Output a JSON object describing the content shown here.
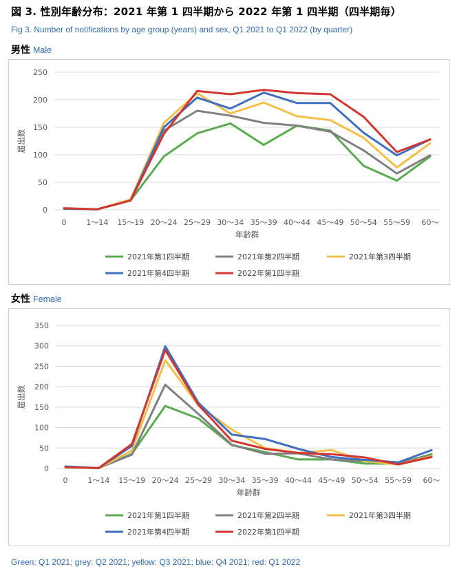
{
  "page": {
    "title": "図 3.  性別年齢分布：2021 年第 1 四半期から 2022 年第 1 四半期（四半期毎）",
    "subtitle": "Fig 3. Number of notifications by age group (years) and sex, Q1 2021 to Q1 2022 (by quarter)",
    "male_label_ja": "男性",
    "male_label_en": "Male",
    "female_label_ja": "女性",
    "female_label_en": "Female",
    "footer": "Green: Q1 2021; grey: Q2 2021; yellow: Q3 2021; blue: Q4 2021; red: Q1 2022"
  },
  "chart_data": [
    {
      "type": "line",
      "panel": "male",
      "xlabel": "年齢群",
      "ylabel": "届出数",
      "ylim": [
        0,
        250
      ],
      "yticks": [
        0,
        50,
        100,
        150,
        200,
        250
      ],
      "grid": true,
      "legend_position": "bottom",
      "categories": [
        "0",
        "1～14",
        "15～19",
        "20～24",
        "25～29",
        "30～34",
        "35～39",
        "40～44",
        "45～49",
        "50～54",
        "55～59",
        "60～"
      ],
      "series": [
        {
          "name": "2021年第1四半期",
          "color": "#5aaa50",
          "values": [
            2,
            1,
            17,
            97,
            139,
            157,
            118,
            153,
            144,
            80,
            53,
            97
          ]
        },
        {
          "name": "2021年第2四半期",
          "color": "#808080",
          "values": [
            2,
            1,
            18,
            144,
            180,
            171,
            158,
            153,
            142,
            108,
            66,
            99
          ]
        },
        {
          "name": "2021年第3四半期",
          "color": "#f2c04a",
          "values": [
            2,
            1,
            19,
            158,
            212,
            175,
            195,
            170,
            163,
            131,
            77,
            121
          ]
        },
        {
          "name": "2021年第4四半期",
          "color": "#3e6fc0",
          "values": [
            2,
            1,
            17,
            150,
            204,
            184,
            213,
            194,
            194,
            140,
            99,
            128
          ]
        },
        {
          "name": "2022年第1四半期",
          "color": "#d2372f",
          "values": [
            3,
            1,
            17,
            138,
            216,
            210,
            218,
            212,
            210,
            169,
            105,
            128
          ]
        }
      ]
    },
    {
      "type": "line",
      "panel": "female",
      "xlabel": "年齢群",
      "ylabel": "届出数",
      "ylim": [
        0,
        350
      ],
      "yticks": [
        0,
        50,
        100,
        150,
        200,
        250,
        300,
        350
      ],
      "grid": true,
      "legend_position": "bottom",
      "categories": [
        "0",
        "1～14",
        "15～19",
        "20～24",
        "25～29",
        "30～34",
        "35～39",
        "40～44",
        "45～49",
        "50～54",
        "55～59",
        "60～"
      ],
      "series": [
        {
          "name": "2021年第1四半期",
          "color": "#5aaa50",
          "values": [
            3,
            1,
            36,
            153,
            122,
            57,
            40,
            22,
            22,
            12,
            12,
            35
          ]
        },
        {
          "name": "2021年第2四半期",
          "color": "#808080",
          "values": [
            4,
            1,
            34,
            205,
            133,
            58,
            36,
            37,
            22,
            18,
            14,
            32
          ]
        },
        {
          "name": "2021年第3四半期",
          "color": "#f2c04a",
          "values": [
            3,
            1,
            44,
            265,
            154,
            95,
            50,
            38,
            45,
            18,
            10,
            30
          ]
        },
        {
          "name": "2021年第4四半期",
          "color": "#3e6fc0",
          "values": [
            5,
            1,
            55,
            299,
            160,
            83,
            72,
            48,
            28,
            21,
            15,
            45
          ]
        },
        {
          "name": "2022年第1四半期",
          "color": "#d2372f",
          "values": [
            3,
            1,
            60,
            290,
            155,
            68,
            48,
            38,
            35,
            27,
            10,
            28
          ]
        }
      ]
    }
  ]
}
